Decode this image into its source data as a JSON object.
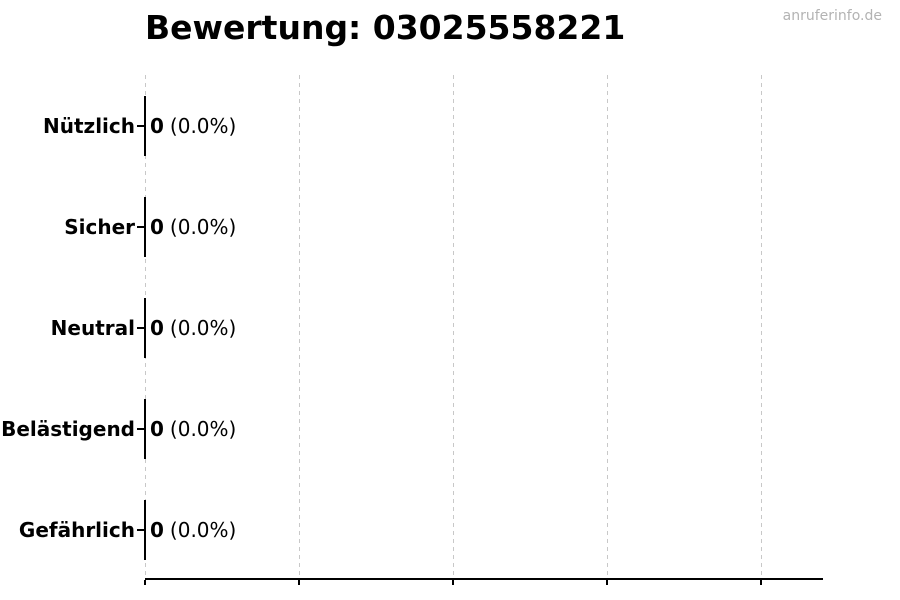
{
  "header": {
    "watermark": "anruferinfo.de"
  },
  "chart_data": {
    "type": "bar",
    "orientation": "horizontal",
    "title": "Bewertung: 03025558221",
    "categories": [
      "Nützlich",
      "Sicher",
      "Neutral",
      "Belästigend",
      "Gefährlich"
    ],
    "values": [
      0,
      0,
      0,
      0,
      0
    ],
    "percentages": [
      0.0,
      0.0,
      0.0,
      0.0,
      0.0
    ],
    "bar_label_counts": [
      "0",
      "0",
      "0",
      "0",
      "0"
    ],
    "bar_label_percents": [
      "(0.0%)",
      "(0.0%)",
      "(0.0%)",
      "(0.0%)",
      "(0.0%)"
    ],
    "xlabel": "",
    "ylabel": "",
    "xlim": [
      0,
      1.1
    ],
    "xticks": [
      0,
      0.25,
      0.5,
      0.75,
      1.0
    ],
    "xtick_labels_visible": false,
    "grid": {
      "vertical": true,
      "horizontal": false,
      "style": "dashed",
      "color": "#c8c8c8"
    },
    "colors": {
      "bar_edge": "#000000",
      "text": "#000000",
      "axis": "#000000",
      "watermark": "#b3b3b3",
      "background": "#ffffff"
    }
  }
}
